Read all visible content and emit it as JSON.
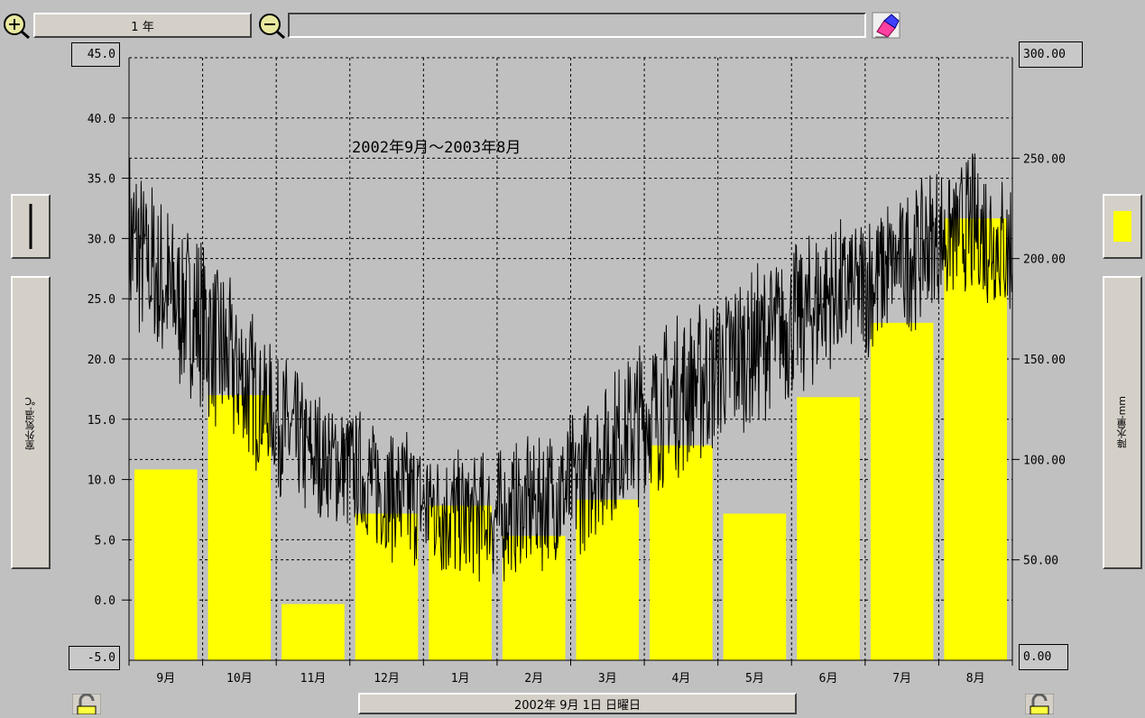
{
  "toolbar": {
    "zoom_in_icon": "zoom-in-icon",
    "period_label": "1 年",
    "zoom_out_icon": "zoom-out-icon",
    "search_value": "",
    "eraser_icon": "eraser-icon"
  },
  "left_panel": {
    "axis_label": "室外気温-℃"
  },
  "right_panel": {
    "axis_label": "降水量-mm"
  },
  "status": {
    "date_label": "2002年 9月 1日 日曜日"
  },
  "colors": {
    "bar": "#ffff00",
    "line": "#000000",
    "plot_bg": "#c0c0c0"
  },
  "chart_data": {
    "type": "bar",
    "title": "2002年9月～2003年8月",
    "categories": [
      "9月",
      "10月",
      "11月",
      "12月",
      "1月",
      "2月",
      "3月",
      "4月",
      "5月",
      "6月",
      "7月",
      "8月"
    ],
    "series": [
      {
        "axis": "right",
        "type": "bar",
        "values": [
          95,
          132,
          28,
          73,
          77,
          62,
          80,
          107,
          73,
          131,
          168,
          220
        ]
      },
      {
        "axis": "left",
        "type": "line",
        "x": [
          "2002-09-01",
          "2002-09-15",
          "2002-10-01",
          "2002-10-15",
          "2002-11-01",
          "2002-11-15",
          "2002-12-01",
          "2002-12-15",
          "2003-01-01",
          "2003-01-15",
          "2003-02-01",
          "2003-02-15",
          "2003-03-01",
          "2003-03-15",
          "2003-04-01",
          "2003-04-15",
          "2003-05-01",
          "2003-05-15",
          "2003-06-01",
          "2003-06-15",
          "2003-07-01",
          "2003-07-15",
          "2003-08-01",
          "2003-08-15",
          "2003-08-31"
        ],
        "values": [
          30,
          26,
          23,
          19,
          15,
          12,
          11,
          9,
          8,
          7,
          7,
          8,
          9,
          12,
          15,
          17,
          19,
          21,
          23,
          25,
          26,
          28,
          30,
          31,
          29
        ],
        "band": [
          12,
          12,
          12,
          11,
          10,
          9,
          9,
          9,
          9,
          9,
          9,
          9,
          10,
          10,
          11,
          11,
          11,
          11,
          11,
          10,
          10,
          10,
          10,
          10,
          10
        ]
      }
    ],
    "y_left": {
      "ticks": [
        "45.0",
        "40.0",
        "35.0",
        "30.0",
        "25.0",
        "20.0",
        "15.0",
        "10.0",
        "5.0",
        "0.0",
        "-5.0"
      ],
      "range": [
        -5,
        45
      ]
    },
    "y_right": {
      "ticks": [
        "300.00",
        "250.00",
        "200.00",
        "150.00",
        "100.00",
        "50.00",
        "0.00"
      ],
      "range": [
        0,
        300
      ]
    },
    "grid": true
  }
}
